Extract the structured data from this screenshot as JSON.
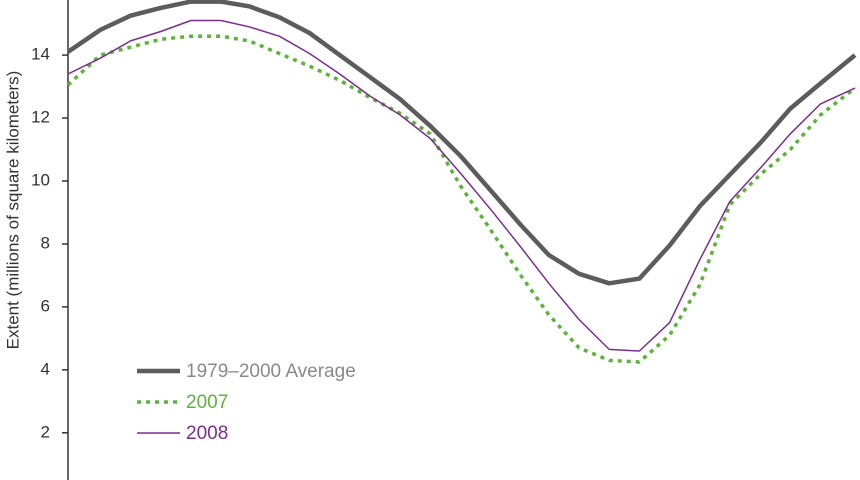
{
  "chart_data": {
    "type": "line",
    "y_label": "Extent (millions of square kilometers)",
    "ylim": [
      0.5,
      15.75
    ],
    "yticks": [
      2,
      4,
      6,
      8,
      10,
      12,
      14
    ],
    "xlim": [
      0,
      365
    ],
    "x": [
      0,
      15,
      29,
      43,
      57,
      71,
      84,
      98,
      112,
      126,
      140,
      154,
      168,
      182,
      196,
      210,
      223,
      237,
      251,
      265,
      279,
      293,
      307,
      321,
      335,
      349,
      365
    ],
    "series": [
      {
        "name": "1979–2000 Average",
        "color": "#5c5c5c",
        "linestyle": "solid",
        "values": [
          14.1,
          14.8,
          15.25,
          15.5,
          15.7,
          15.7,
          15.55,
          15.2,
          14.7,
          14.0,
          13.3,
          12.6,
          11.75,
          10.8,
          9.7,
          8.6,
          7.65,
          7.05,
          6.75,
          6.9,
          7.95,
          9.2,
          10.2,
          11.2,
          12.3,
          13.1,
          14.0
        ]
      },
      {
        "name": "2007",
        "color": "#5db33a",
        "linestyle": "dashed",
        "values": [
          13.05,
          14.0,
          14.25,
          14.5,
          14.6,
          14.6,
          14.45,
          14.05,
          13.65,
          13.2,
          12.65,
          12.15,
          11.5,
          9.85,
          8.45,
          7.0,
          5.75,
          4.7,
          4.3,
          4.25,
          5.1,
          6.7,
          9.25,
          10.2,
          11.0,
          12.1,
          12.95
        ]
      },
      {
        "name": "2008",
        "color": "#7b2d8e",
        "linestyle": "solid",
        "values": [
          13.4,
          13.9,
          14.45,
          14.75,
          15.1,
          15.1,
          14.9,
          14.6,
          14.05,
          13.4,
          12.7,
          12.1,
          11.35,
          10.25,
          9.1,
          7.9,
          6.75,
          5.6,
          4.65,
          4.6,
          5.5,
          7.5,
          9.35,
          10.4,
          11.5,
          12.45,
          12.95
        ]
      }
    ],
    "legend": "lower left"
  }
}
